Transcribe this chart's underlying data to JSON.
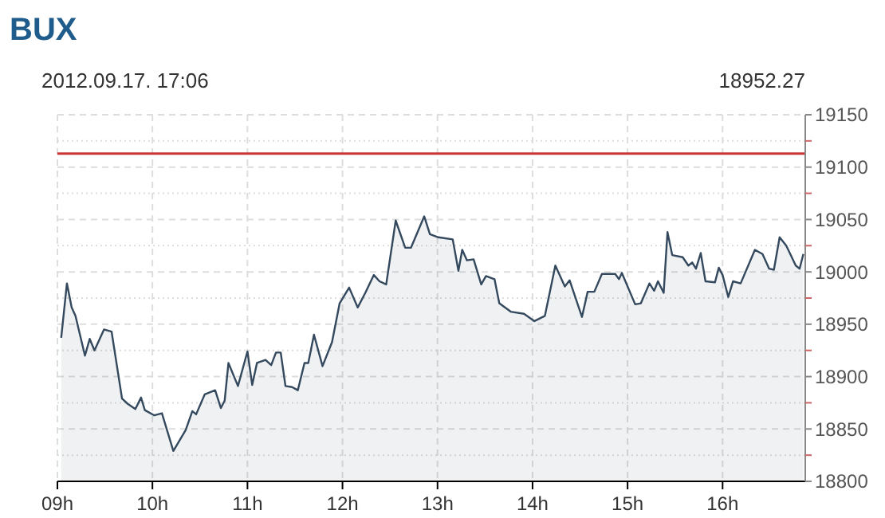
{
  "chart_data": {
    "type": "area",
    "title": "BUX",
    "subtitle": "2012.09.17. 17:06",
    "annotations": [
      "18952.27"
    ],
    "xlim": [
      9,
      16.87
    ],
    "xticks": [
      {
        "value": 9,
        "label": "09h"
      },
      {
        "value": 10,
        "label": "10h"
      },
      {
        "value": 11,
        "label": "11h"
      },
      {
        "value": 12,
        "label": "12h"
      },
      {
        "value": 13,
        "label": "13h"
      },
      {
        "value": 14,
        "label": "14h"
      },
      {
        "value": 15,
        "label": "15h"
      },
      {
        "value": 16,
        "label": "16h"
      }
    ],
    "ylim": [
      18800,
      19150
    ],
    "yticks": [
      18800,
      {
        "value": 18825,
        "label": null
      },
      18850,
      {
        "value": 18875,
        "label": null
      },
      18900,
      {
        "value": 18925,
        "label": null
      },
      18950,
      {
        "value": 18975,
        "label": null
      },
      19000,
      {
        "value": 19025,
        "label": null
      },
      19050,
      {
        "value": 19075,
        "label": null
      },
      19100,
      {
        "value": 19125,
        "label": null
      },
      19150
    ],
    "grid": true,
    "ref_lines": [
      {
        "axis": "y",
        "value": 19113,
        "color": "#cc3333"
      }
    ],
    "series": [
      {
        "color": "#34495e",
        "x": [
          9.04,
          9.1,
          9.15,
          9.19,
          9.29,
          9.34,
          9.39,
          9.49,
          9.57,
          9.68,
          9.74,
          9.82,
          9.88,
          9.92,
          10.02,
          10.1,
          10.22,
          10.35,
          10.42,
          10.46,
          10.55,
          10.66,
          10.72,
          10.76,
          10.8,
          10.9,
          11,
          11.05,
          11.1,
          11.19,
          11.25,
          11.3,
          11.35,
          11.4,
          11.47,
          11.53,
          11.6,
          11.64,
          11.7,
          11.79,
          11.89,
          11.97,
          12.07,
          12.16,
          12.24,
          12.33,
          12.39,
          12.46,
          12.56,
          12.66,
          12.72,
          12.86,
          12.92,
          13.01,
          13.16,
          13.22,
          13.26,
          13.31,
          13.38,
          13.46,
          13.51,
          13.6,
          13.65,
          13.77,
          13.91,
          14.02,
          14.13,
          14.24,
          14.34,
          14.39,
          14.52,
          14.58,
          14.65,
          14.73,
          14.87,
          14.91,
          14.94,
          15.08,
          15.14,
          15.23,
          15.28,
          15.32,
          15.38,
          15.42,
          15.47,
          15.58,
          15.64,
          15.68,
          15.72,
          15.77,
          15.82,
          15.92,
          15.96,
          16,
          16.06,
          16.11,
          16.19,
          16.34,
          16.42,
          16.49,
          16.54,
          16.6,
          16.67,
          16.77,
          16.81,
          16.85
        ],
        "values": [
          18937,
          18989,
          18966,
          18958,
          18920,
          18936,
          18925,
          18945,
          18943,
          18879,
          18874,
          18869,
          18880,
          18868,
          18863,
          18865,
          18829,
          18849,
          18867,
          18864,
          18883,
          18887,
          18870,
          18877,
          18913,
          18891,
          18924,
          18892,
          18913,
          18916,
          18911,
          18923,
          18923,
          18891,
          18890,
          18887,
          18913,
          18913,
          18940,
          18910,
          18933,
          18970,
          18985,
          18966,
          18980,
          18997,
          18991,
          18988,
          19049,
          19023,
          19023,
          19053,
          19036,
          19033,
          19031,
          19001,
          19021,
          19011,
          19012,
          18988,
          18996,
          18993,
          18970,
          18962,
          18960,
          18953,
          18958,
          19006,
          18986,
          18992,
          18957,
          18981,
          18981,
          18998,
          18998,
          18993,
          18999,
          18969,
          18970,
          18989,
          18982,
          18991,
          18980,
          19038,
          19016,
          19014,
          19006,
          19009,
          19003,
          19018,
          18991,
          18990,
          19004,
          18997,
          18976,
          18991,
          18989,
          19021,
          19017,
          19003,
          19002,
          19033,
          19025,
          19006,
          19003,
          19017
        ]
      }
    ]
  }
}
